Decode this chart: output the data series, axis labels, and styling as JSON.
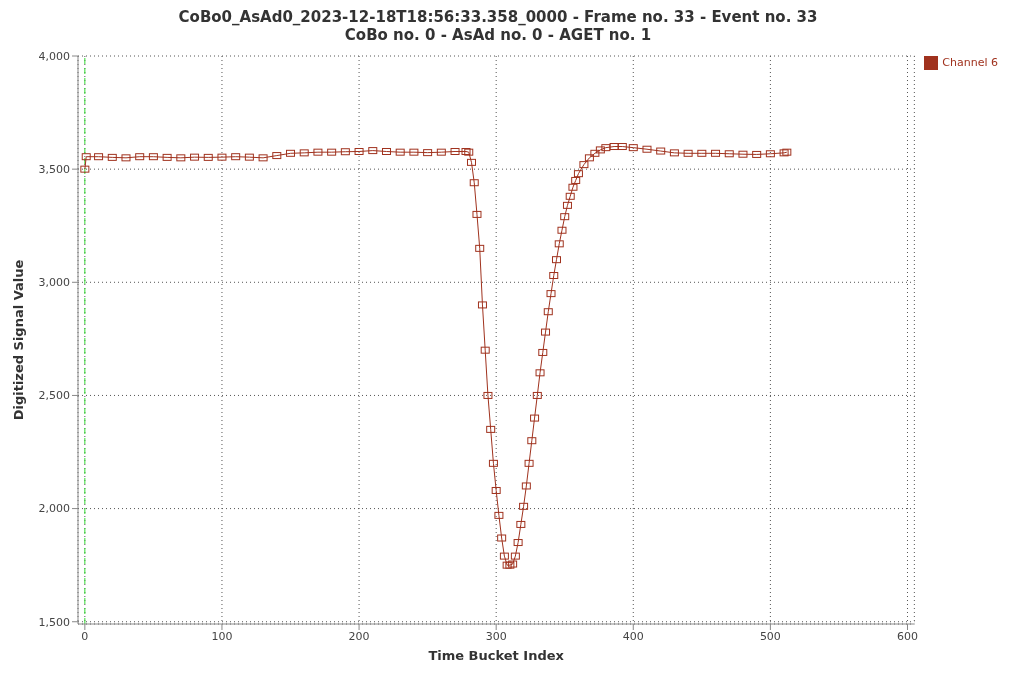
{
  "chart_data": {
    "type": "line",
    "title": "CoBo0_AsAd0_2023-12-18T18:56:33.358_0000 - Frame no. 33 - Event no. 33",
    "subtitle": "CoBo no. 0 - AsAd no. 0 - AGET no. 1",
    "xlabel": "Time Bucket Index",
    "ylabel": "Digitized Signal Value",
    "x": [
      0,
      1,
      10,
      20,
      30,
      40,
      50,
      60,
      70,
      80,
      90,
      100,
      110,
      120,
      130,
      140,
      150,
      160,
      170,
      180,
      190,
      200,
      210,
      220,
      230,
      240,
      250,
      260,
      270,
      278,
      280,
      282,
      284,
      286,
      288,
      290,
      292,
      294,
      296,
      298,
      300,
      302,
      304,
      306,
      308,
      310,
      312,
      314,
      316,
      318,
      320,
      322,
      324,
      326,
      328,
      330,
      332,
      334,
      336,
      338,
      340,
      342,
      344,
      346,
      348,
      350,
      352,
      354,
      356,
      358,
      360,
      364,
      368,
      372,
      376,
      380,
      386,
      392,
      400,
      410,
      420,
      430,
      440,
      450,
      460,
      470,
      480,
      490,
      500,
      510,
      512
    ],
    "series": [
      {
        "name": "Channel 6",
        "color": "#a0321e",
        "values": [
          3500,
          3555,
          3555,
          3552,
          3550,
          3555,
          3555,
          3552,
          3550,
          3553,
          3552,
          3553,
          3555,
          3553,
          3550,
          3560,
          3570,
          3572,
          3575,
          3575,
          3577,
          3578,
          3582,
          3578,
          3575,
          3575,
          3573,
          3575,
          3578,
          3578,
          3575,
          3530,
          3440,
          3300,
          3150,
          2900,
          2700,
          2500,
          2350,
          2200,
          2080,
          1970,
          1870,
          1790,
          1750,
          1750,
          1755,
          1790,
          1850,
          1930,
          2010,
          2100,
          2200,
          2300,
          2400,
          2500,
          2600,
          2690,
          2780,
          2870,
          2950,
          3030,
          3100,
          3170,
          3230,
          3290,
          3340,
          3380,
          3420,
          3450,
          3480,
          3520,
          3550,
          3570,
          3585,
          3595,
          3600,
          3600,
          3595,
          3588,
          3580,
          3572,
          3570,
          3570,
          3570,
          3568,
          3566,
          3565,
          3568,
          3572,
          3575
        ]
      }
    ],
    "xlim": [
      -5,
      605
    ],
    "xticks": [
      0,
      100,
      200,
      300,
      400,
      500,
      600
    ],
    "ylim": [
      1490,
      4000
    ],
    "yticks": [
      {
        "value": 1500,
        "label": "1,500"
      },
      {
        "value": 2000,
        "label": "2,000"
      },
      {
        "value": 2500,
        "label": "2,500"
      },
      {
        "value": 3000,
        "label": "3,000"
      },
      {
        "value": 3500,
        "label": "3,500"
      },
      {
        "value": 4000,
        "label": "4,000"
      }
    ],
    "ref_lines": [
      {
        "axis": "x",
        "value": 0,
        "color": "#33dd33",
        "line_style": "dashed"
      }
    ],
    "grid": true,
    "legend": "top right",
    "marker": "square",
    "line_style": "solid"
  }
}
